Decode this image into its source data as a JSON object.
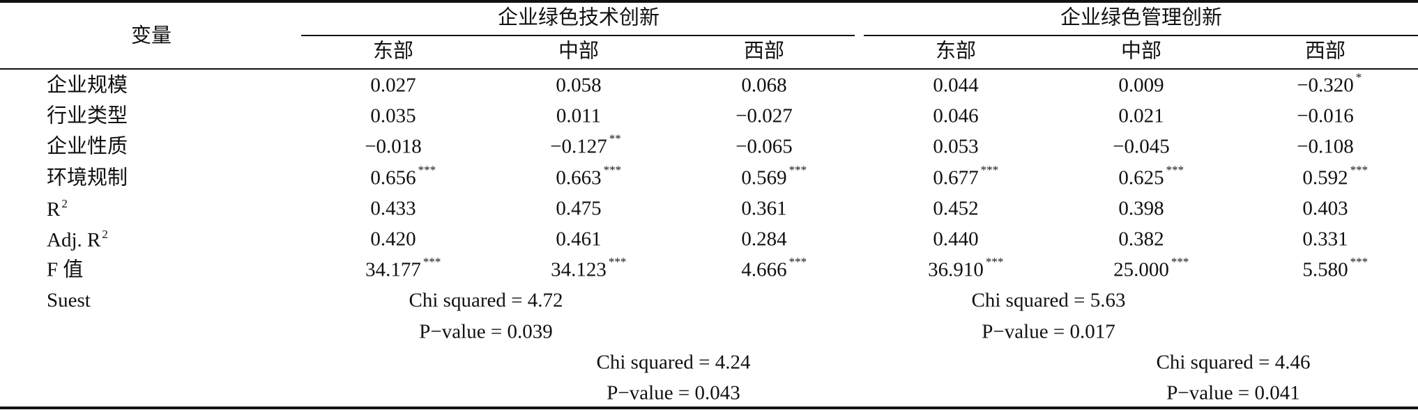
{
  "table": {
    "header": {
      "variable": "变量",
      "groups": [
        "企业绿色技术创新",
        "企业绿色管理创新"
      ],
      "columns": [
        "东部",
        "中部",
        "西部",
        "东部",
        "中部",
        "西部"
      ]
    },
    "rows": [
      {
        "label": {
          "text": "企业规模"
        },
        "cells": [
          {
            "v": "0.027"
          },
          {
            "v": "0.058"
          },
          {
            "v": "0.068"
          },
          {
            "v": "0.044"
          },
          {
            "v": "0.009"
          },
          {
            "v": "−0.320",
            "sig": "*"
          }
        ]
      },
      {
        "label": {
          "text": "行业类型"
        },
        "cells": [
          {
            "v": "0.035"
          },
          {
            "v": "0.011"
          },
          {
            "v": "−0.027"
          },
          {
            "v": "0.046"
          },
          {
            "v": "0.021"
          },
          {
            "v": "−0.016"
          }
        ]
      },
      {
        "label": {
          "text": "企业性质"
        },
        "cells": [
          {
            "v": "−0.018"
          },
          {
            "v": "−0.127",
            "sig": "**"
          },
          {
            "v": "−0.065"
          },
          {
            "v": "0.053"
          },
          {
            "v": "−0.045"
          },
          {
            "v": "−0.108"
          }
        ]
      },
      {
        "label": {
          "text": "环境规制"
        },
        "cells": [
          {
            "v": "0.656",
            "sig": "***"
          },
          {
            "v": "0.663",
            "sig": "***"
          },
          {
            "v": "0.569",
            "sig": "***"
          },
          {
            "v": "0.677",
            "sig": "***"
          },
          {
            "v": "0.625",
            "sig": "***"
          },
          {
            "v": "0.592",
            "sig": "***"
          }
        ]
      },
      {
        "label": {
          "text": "R",
          "sup": "2"
        },
        "cells": [
          {
            "v": "0.433"
          },
          {
            "v": "0.475"
          },
          {
            "v": "0.361"
          },
          {
            "v": "0.452"
          },
          {
            "v": "0.398"
          },
          {
            "v": "0.403"
          }
        ]
      },
      {
        "label": {
          "text": "Adj. R",
          "sup": "2"
        },
        "cells": [
          {
            "v": "0.420"
          },
          {
            "v": "0.461"
          },
          {
            "v": "0.284"
          },
          {
            "v": "0.440"
          },
          {
            "v": "0.382"
          },
          {
            "v": "0.331"
          }
        ]
      },
      {
        "label": {
          "text": "F 值"
        },
        "cells": [
          {
            "v": "34.177",
            "sig": "***"
          },
          {
            "v": "34.123",
            "sig": "***"
          },
          {
            "v": "4.666",
            "sig": "***"
          },
          {
            "v": "36.910",
            "sig": "***"
          },
          {
            "v": "25.000",
            "sig": "***"
          },
          {
            "v": "5.580",
            "sig": "***"
          }
        ]
      }
    ],
    "suest": {
      "label": "Suest",
      "rows": [
        [
          "Chi squared = 4.72",
          "Chi squared = 5.63"
        ],
        [
          "P−value = 0.039",
          "P−value = 0.017"
        ],
        [
          "Chi squared = 4.24",
          "Chi squared = 4.46"
        ],
        [
          "P−value = 0.043",
          "P−value = 0.041"
        ]
      ]
    }
  }
}
